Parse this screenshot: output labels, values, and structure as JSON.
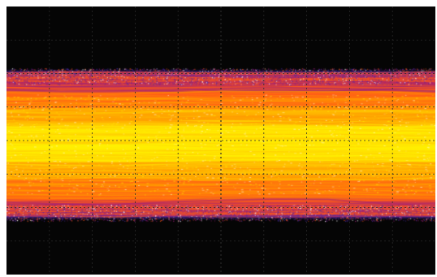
{
  "display": {
    "background_color": "#050505",
    "grid_color": "#2a2a2a",
    "band_colors": {
      "core": "#fff200",
      "inner": "#ffcc00",
      "mid": "#ff9800",
      "outer": "#ff5a1a",
      "edge": "#a0207a",
      "fringe": "#4a2aa0"
    },
    "grid": true
  }
}
